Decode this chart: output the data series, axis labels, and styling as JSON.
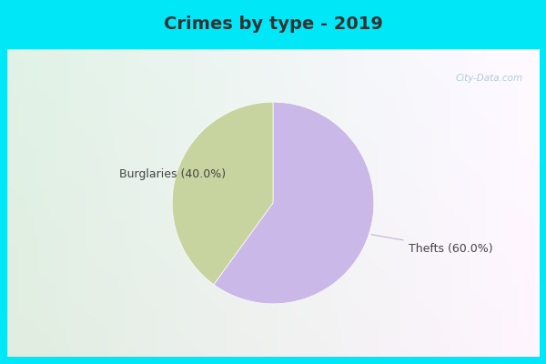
{
  "title": "Crimes by type - 2019",
  "slices": [
    {
      "label": "Thefts",
      "value": 60.0,
      "color": "#c9b8e8"
    },
    {
      "label": "Burglaries",
      "value": 40.0,
      "color": "#c8d4a0"
    }
  ],
  "bg_color_cyan": "#00e8f8",
  "bg_color_inner_top": "#e8f5f0",
  "bg_color_inner_bottom": "#d8eeda",
  "title_fontsize": 14,
  "label_fontsize": 9,
  "watermark": "City-Data.com",
  "title_color": "#333333"
}
